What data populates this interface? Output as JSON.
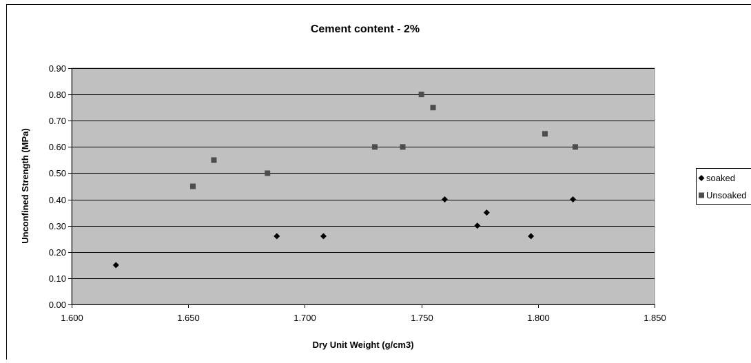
{
  "chart_data": {
    "type": "scatter",
    "title": "Cement content - 2%",
    "xlabel": "Dry Unit Weight (g/cm3)",
    "ylabel": "Unconfined Strength (MPa)",
    "xlim": [
      1.6,
      1.85
    ],
    "ylim": [
      0,
      0.9
    ],
    "x_ticks": [
      "1.600",
      "1.650",
      "1.700",
      "1.750",
      "1.800",
      "1.850"
    ],
    "y_ticks": [
      "0.00",
      "0.10",
      "0.20",
      "0.30",
      "0.40",
      "0.50",
      "0.60",
      "0.70",
      "0.80",
      "0.90"
    ],
    "grid": "horizontal",
    "legend_position": "right",
    "plot_background": "#c0c0c0",
    "series": [
      {
        "name": "soaked",
        "marker": "diamond",
        "color": "#000000",
        "points": [
          {
            "x": 1.619,
            "y": 0.15
          },
          {
            "x": 1.688,
            "y": 0.26
          },
          {
            "x": 1.708,
            "y": 0.26
          },
          {
            "x": 1.76,
            "y": 0.4
          },
          {
            "x": 1.774,
            "y": 0.3
          },
          {
            "x": 1.778,
            "y": 0.35
          },
          {
            "x": 1.797,
            "y": 0.26
          },
          {
            "x": 1.815,
            "y": 0.4
          }
        ]
      },
      {
        "name": "Unsoaked",
        "marker": "square",
        "color": "#4d4d4d",
        "points": [
          {
            "x": 1.652,
            "y": 0.45
          },
          {
            "x": 1.661,
            "y": 0.55
          },
          {
            "x": 1.684,
            "y": 0.5
          },
          {
            "x": 1.73,
            "y": 0.6
          },
          {
            "x": 1.742,
            "y": 0.6
          },
          {
            "x": 1.75,
            "y": 0.8
          },
          {
            "x": 1.755,
            "y": 0.75
          },
          {
            "x": 1.803,
            "y": 0.65
          },
          {
            "x": 1.816,
            "y": 0.6
          }
        ]
      }
    ]
  }
}
